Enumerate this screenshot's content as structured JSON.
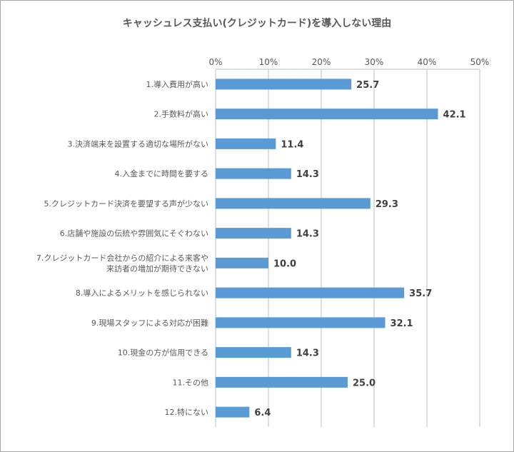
{
  "chart_data": {
    "type": "bar",
    "orientation": "horizontal",
    "title": "キャッシュレス支払い(クレジットカード)を導入しない理由",
    "categories": [
      [
        "1.導入費用が高い"
      ],
      [
        "2.手数料が高い"
      ],
      [
        "3.決済端末を設置する適切な場所がない"
      ],
      [
        "4.入金までに時間を要する"
      ],
      [
        "5.クレジットカード決済を要望する声が少ない"
      ],
      [
        "6.店舗や施設の伝統や雰囲気にそぐわない"
      ],
      [
        "7.クレジットカード会社からの紹介による来客や",
        "来訪者の増加が期待できない"
      ],
      [
        "8.導入によるメリットを感じられない"
      ],
      [
        "9.現場スタッフによる対応が困難"
      ],
      [
        "10.現金の方が信用できる"
      ],
      [
        "11.その他"
      ],
      [
        "12.特にない"
      ]
    ],
    "values": [
      25.7,
      42.1,
      11.4,
      14.3,
      29.3,
      14.3,
      10.0,
      35.7,
      32.1,
      14.3,
      25.0,
      6.4
    ],
    "value_labels": [
      "25.7",
      "42.1",
      "11.4",
      "14.3",
      "29.3",
      "14.3",
      "10.0",
      "35.7",
      "32.1",
      "14.3",
      "25.0",
      "6.4"
    ],
    "xlim": [
      0,
      50
    ],
    "ticks": [
      0,
      10,
      20,
      30,
      40,
      50
    ],
    "tick_labels": [
      "0%",
      "10%",
      "20%",
      "30%",
      "40%",
      "50%"
    ],
    "axis_position": "top",
    "grid": true,
    "bar_color": "#5b9bd5",
    "grid_color": "#bfbfbf"
  }
}
